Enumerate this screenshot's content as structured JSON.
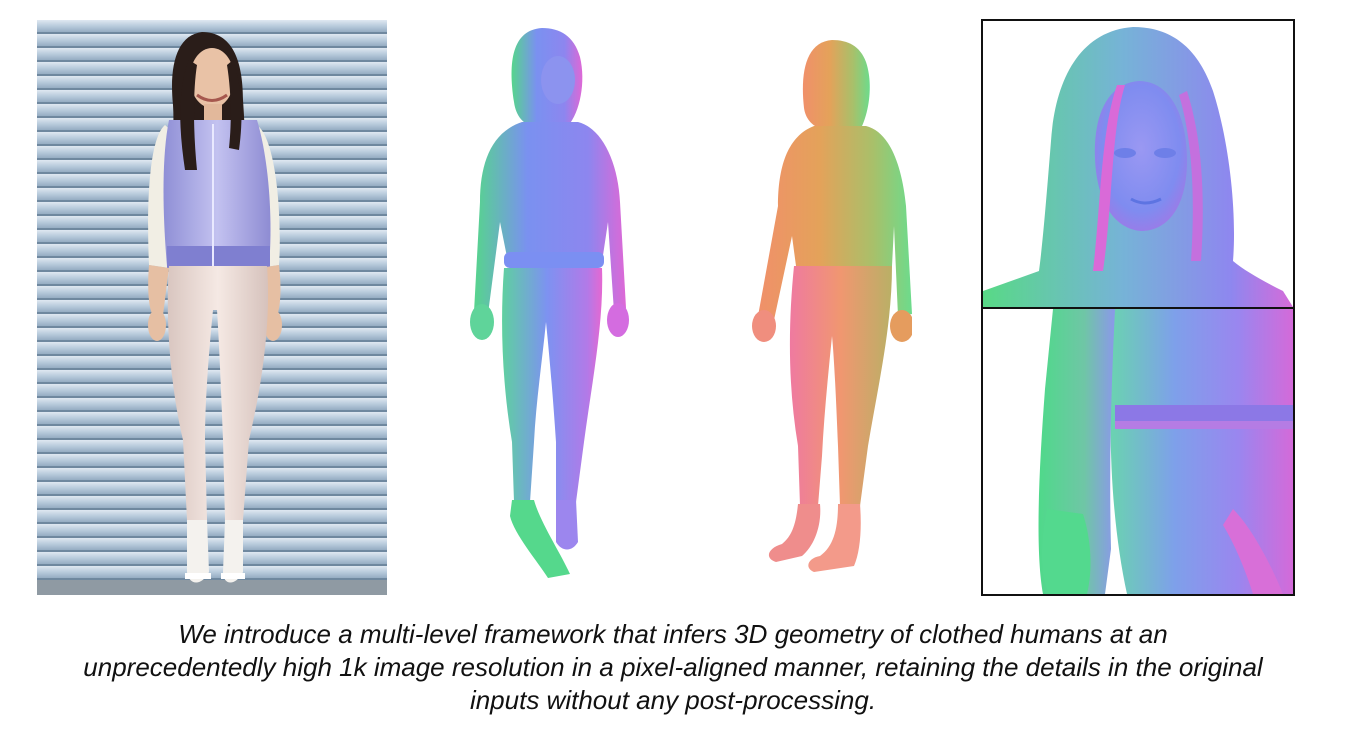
{
  "figure": {
    "panels": [
      {
        "id": "input-photo",
        "kind": "photo"
      },
      {
        "id": "front-normal-render",
        "kind": "3d-reconstruction"
      },
      {
        "id": "back-normal-render",
        "kind": "3d-reconstruction"
      },
      {
        "id": "zoomed-details",
        "kind": "close-up"
      }
    ],
    "caption_lines": [
      "We introduce a multi-level framework that infers 3D geometry of clothed humans at an",
      "unprecedentedly high 1k image resolution in a pixel-aligned manner, retaining the details in the original",
      "inputs without any post-processing."
    ]
  },
  "colors": {
    "background": "#ffffff",
    "caption_text": "#111111",
    "frame": "#111111",
    "shutter_wall": "#a9bfd3",
    "jacket": "#a9a6e3",
    "jeans": "#ecdcd6",
    "hair": "#2a1d19",
    "normal_blue": "#7e8df0",
    "normal_green": "#53d98a",
    "normal_pink": "#e066d8",
    "normal_orange": "#ee9660"
  }
}
